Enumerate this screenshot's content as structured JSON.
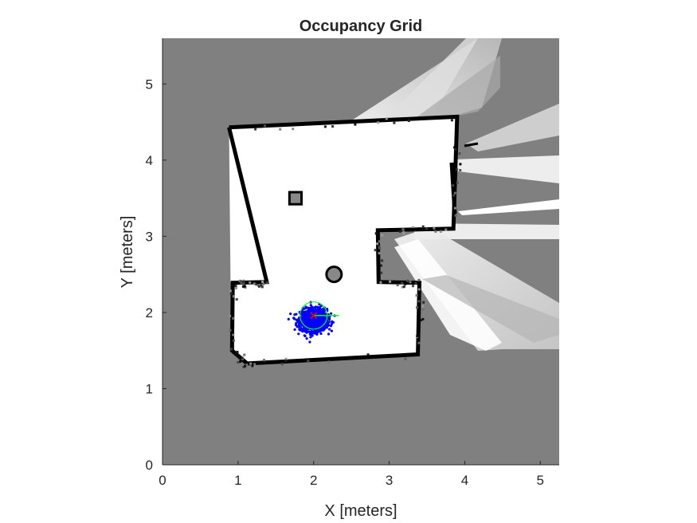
{
  "chart_data": {
    "type": "heatmap",
    "title": "Occupancy Grid",
    "xlabel": "X [meters]",
    "ylabel": "Y [meters]",
    "xlim": [
      0,
      5.25
    ],
    "ylim": [
      0,
      5.6
    ],
    "xticks": [
      0,
      1,
      2,
      3,
      4,
      5
    ],
    "yticks": [
      0,
      1,
      2,
      3,
      4,
      5
    ],
    "grid": false,
    "colormap": "gray",
    "colors": {
      "unknown": "#808080",
      "free": "#ffffff",
      "occupied": "#000000",
      "particles": "#0000ff",
      "pose_estimate": "#ff0000",
      "pose_circle": "#00ff00",
      "heading": "#00ff00"
    },
    "room_walls": [
      [
        0.88,
        4.43
      ],
      [
        3.9,
        4.57
      ],
      [
        3.85,
        3.1
      ],
      [
        2.85,
        3.08
      ],
      [
        2.86,
        2.4
      ],
      [
        3.4,
        2.39
      ],
      [
        3.38,
        1.45
      ],
      [
        1.12,
        1.33
      ],
      [
        0.92,
        1.5
      ],
      [
        0.93,
        2.39
      ],
      [
        1.38,
        2.4
      ],
      [
        0.9,
        2.4
      ]
    ],
    "obstacles": [
      {
        "shape": "square",
        "x": 1.76,
        "y": 3.5,
        "size": 0.16
      },
      {
        "shape": "round",
        "x": 2.27,
        "y": 2.5,
        "size": 0.2
      }
    ],
    "pose_estimate": {
      "x": 2.0,
      "y": 1.96,
      "heading_deg": 0,
      "circle_radius": 0.18
    },
    "particles": {
      "center": [
        2.0,
        1.9
      ],
      "spread": [
        0.16,
        0.13
      ],
      "count": 1200
    }
  }
}
